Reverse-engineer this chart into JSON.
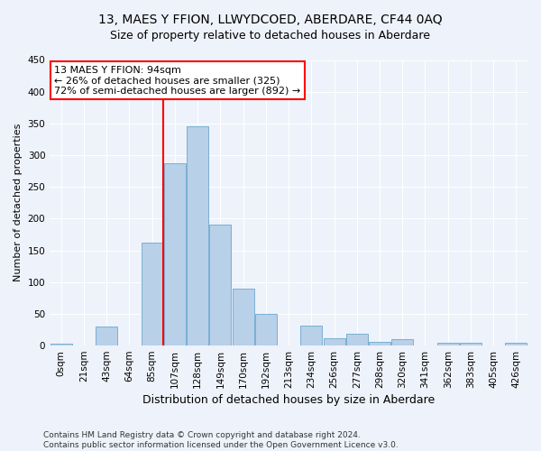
{
  "title": "13, MAES Y FFION, LLWYDCOED, ABERDARE, CF44 0AQ",
  "subtitle": "Size of property relative to detached houses in Aberdare",
  "xlabel": "Distribution of detached houses by size in Aberdare",
  "ylabel": "Number of detached properties",
  "bar_color": "#b8d0e8",
  "bar_edge_color": "#7aafd4",
  "bar_values": [
    3,
    0,
    30,
    0,
    162,
    287,
    345,
    190,
    90,
    50,
    0,
    32,
    12,
    18,
    6,
    10,
    0,
    5,
    5,
    0,
    4
  ],
  "categories": [
    "0sqm",
    "21sqm",
    "43sqm",
    "64sqm",
    "85sqm",
    "107sqm",
    "128sqm",
    "149sqm",
    "170sqm",
    "192sqm",
    "213sqm",
    "234sqm",
    "256sqm",
    "277sqm",
    "298sqm",
    "320sqm",
    "341sqm",
    "362sqm",
    "383sqm",
    "405sqm",
    "426sqm"
  ],
  "property_bin_index": 4,
  "annotation_text": "13 MAES Y FFION: 94sqm\n← 26% of detached houses are smaller (325)\n72% of semi-detached houses are larger (892) →",
  "annotation_box_color": "white",
  "annotation_box_edge_color": "red",
  "vline_color": "red",
  "ylim": [
    0,
    450
  ],
  "yticks": [
    0,
    50,
    100,
    150,
    200,
    250,
    300,
    350,
    400,
    450
  ],
  "footer_text": "Contains HM Land Registry data © Crown copyright and database right 2024.\nContains public sector information licensed under the Open Government Licence v3.0.",
  "background_color": "#eef2fa",
  "grid_color": "white",
  "title_fontsize": 10,
  "xlabel_fontsize": 9,
  "ylabel_fontsize": 8,
  "tick_fontsize": 7.5,
  "annotation_fontsize": 8,
  "footer_fontsize": 6.5
}
